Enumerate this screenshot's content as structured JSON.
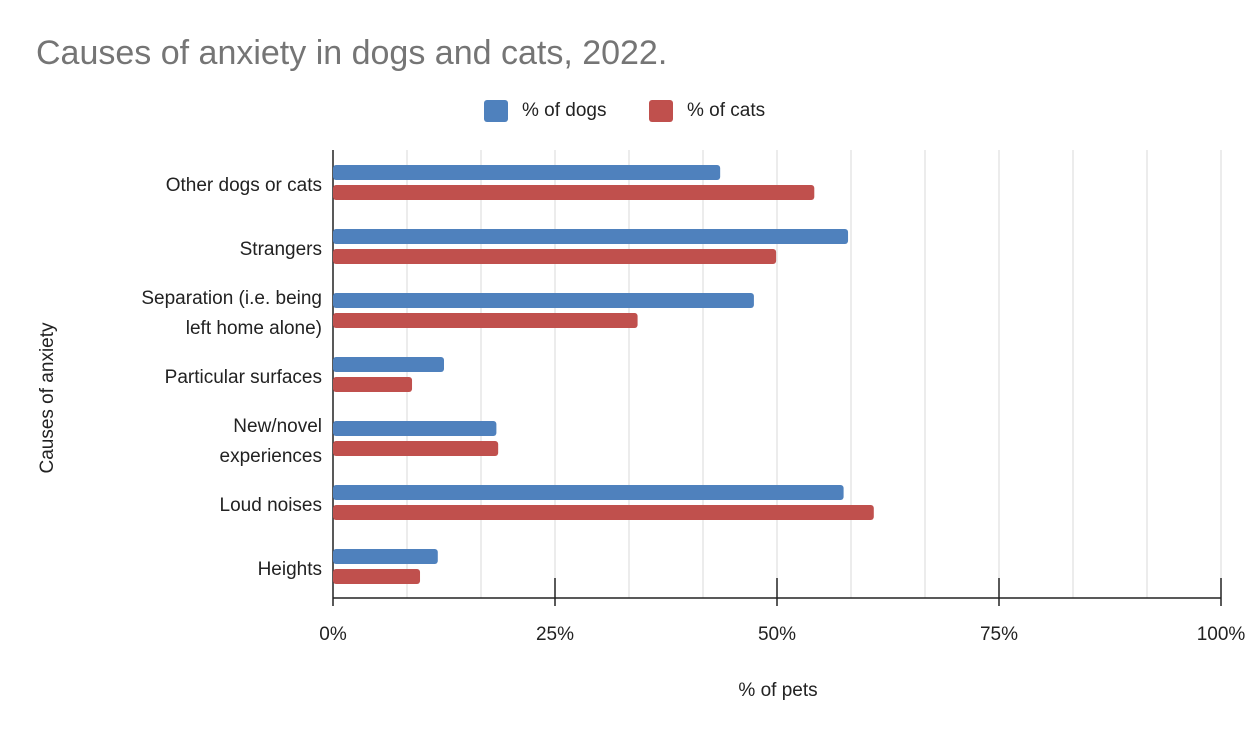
{
  "chart_data": {
    "type": "bar",
    "orientation": "horizontal",
    "title": "Causes of anxiety in dogs and cats, 2022.",
    "xlabel": "% of pets",
    "ylabel": "Causes of anxiety",
    "categories": [
      "Other dogs or cats",
      "Strangers",
      "Separation (i.e. being left home alone)",
      "Particular surfaces",
      "New/novel experiences",
      "Loud noises",
      "Heights"
    ],
    "category_lines": [
      [
        "Other dogs or cats"
      ],
      [
        "Strangers"
      ],
      [
        "Separation (i.e. being",
        "left home alone)"
      ],
      [
        "Particular surfaces"
      ],
      [
        "New/novel",
        "experiences"
      ],
      [
        "Loud noises"
      ],
      [
        "Heights"
      ]
    ],
    "series": [
      {
        "name": "% of dogs",
        "color": "#4f81bd",
        "values": [
          43.6,
          58.0,
          47.4,
          12.5,
          18.4,
          57.5,
          11.8
        ]
      },
      {
        "name": "% of cats",
        "color": "#c0504d",
        "values": [
          54.2,
          49.9,
          34.3,
          8.9,
          18.6,
          60.9,
          9.8
        ]
      }
    ],
    "xlim": [
      0,
      100
    ],
    "xticks": [
      "0%",
      "25%",
      "50%",
      "75%",
      "100%"
    ],
    "grid": true,
    "legend": "top"
  }
}
